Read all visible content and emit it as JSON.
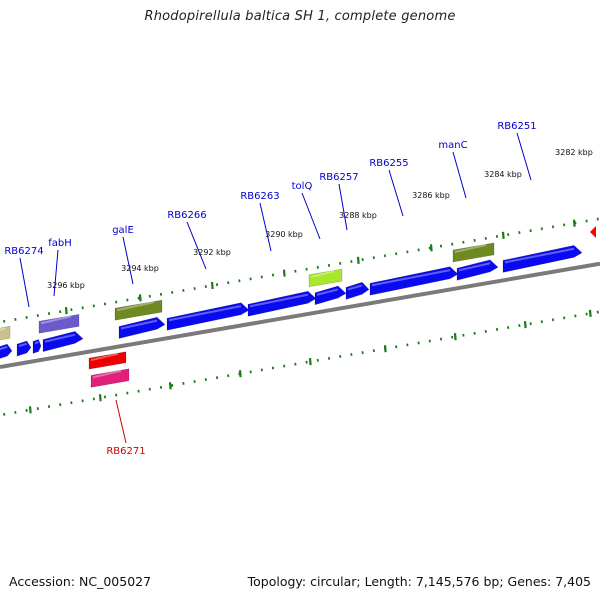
{
  "title": "Rhodopirellula baltica SH 1, complete genome",
  "footer": {
    "accession": "Accession: NC_005027",
    "summary": "Topology: circular; Length: 7,145,576 bp; Genes: 7,405"
  },
  "colors": {
    "forward_cds": "#0a0af0",
    "reverse_red": "#ee0000",
    "reverse_pink": "#e0207a",
    "olive": "#6f8a23",
    "yellowgreen": "#a8e82a",
    "purple": "#6a5acd",
    "tan": "#c9c28a",
    "backbone": "#7a7a7a",
    "tick": "#1a7a1a",
    "label_blue": "#0000cc",
    "label_red": "#cc0000",
    "marker": "#ff0000"
  },
  "kbp_ticks": [
    "3296 kbp",
    "3294 kbp",
    "3292 kbp",
    "3290 kbp",
    "3288 kbp",
    "3286 kbp",
    "3284 kbp",
    "3282 kbp"
  ],
  "gene_labels": [
    {
      "text": "RB6274",
      "color": "label_blue"
    },
    {
      "text": "fabH",
      "color": "label_blue"
    },
    {
      "text": "galE",
      "color": "label_blue"
    },
    {
      "text": "RB6266",
      "color": "label_blue"
    },
    {
      "text": "RB6263",
      "color": "label_blue"
    },
    {
      "text": "tolQ",
      "color": "label_blue"
    },
    {
      "text": "RB6257",
      "color": "label_blue"
    },
    {
      "text": "RB6255",
      "color": "label_blue"
    },
    {
      "text": "manC",
      "color": "label_blue"
    },
    {
      "text": "RB6251",
      "color": "label_blue"
    },
    {
      "text": "RB6271",
      "color": "label_red"
    }
  ]
}
